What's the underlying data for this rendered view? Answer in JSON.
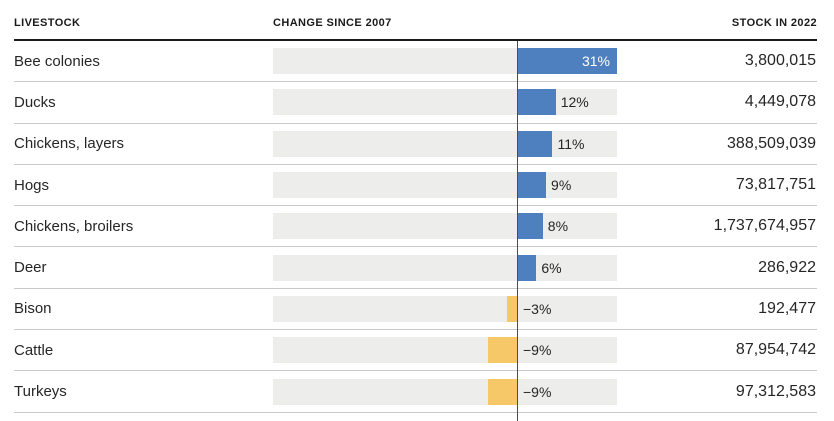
{
  "header": {
    "livestock_label": "LIVESTOCK",
    "change_label": "CHANGE SINCE 2007",
    "stock_label": "STOCK IN 2022"
  },
  "colors": {
    "positive_bar": "#4e7fbf",
    "negative_bar": "#f6c868",
    "track": "#ededec",
    "zero_line": "#4d4d4d",
    "inside_label": "#ffffff",
    "text": "#262626"
  },
  "rows": [
    {
      "label": "Bee colonies",
      "change_pct": 31,
      "change_label": "31%",
      "stock": "3,800,015"
    },
    {
      "label": "Ducks",
      "change_pct": 12,
      "change_label": "12%",
      "stock": "4,449,078"
    },
    {
      "label": "Chickens, layers",
      "change_pct": 11,
      "change_label": "11%",
      "stock": "388,509,039"
    },
    {
      "label": "Hogs",
      "change_pct": 9,
      "change_label": "9%",
      "stock": "73,817,751"
    },
    {
      "label": "Chickens, broilers",
      "change_pct": 8,
      "change_label": "8%",
      "stock": "1,737,674,957"
    },
    {
      "label": "Deer",
      "change_pct": 6,
      "change_label": "6%",
      "stock": "286,922"
    },
    {
      "label": "Bison",
      "change_pct": -3,
      "change_label": "−3%",
      "stock": "192,477"
    },
    {
      "label": "Cattle",
      "change_pct": -9,
      "change_label": "−9%",
      "stock": "87,954,742"
    },
    {
      "label": "Turkeys",
      "change_pct": -9,
      "change_label": "−9%",
      "stock": "97,312,583"
    }
  ],
  "chart_data": {
    "type": "bar",
    "orientation": "horizontal",
    "title": "",
    "columns": [
      "LIVESTOCK",
      "CHANGE SINCE 2007",
      "STOCK IN 2022"
    ],
    "categories": [
      "Bee colonies",
      "Ducks",
      "Chickens, layers",
      "Hogs",
      "Chickens, broilers",
      "Deer",
      "Bison",
      "Cattle",
      "Turkeys"
    ],
    "series": [
      {
        "name": "Change since 2007 (%)",
        "values": [
          31,
          12,
          11,
          9,
          8,
          6,
          -3,
          -9,
          -9
        ]
      },
      {
        "name": "Stock in 2022",
        "values": [
          3800015,
          4449078,
          388509039,
          73817751,
          1737674957,
          286922,
          192477,
          87954742,
          97312583
        ]
      }
    ],
    "positive_color": "#4e7fbf",
    "negative_color": "#f6c868",
    "zero_axis_line": true,
    "grid": false,
    "legend_position": "none",
    "value_labels": true
  }
}
